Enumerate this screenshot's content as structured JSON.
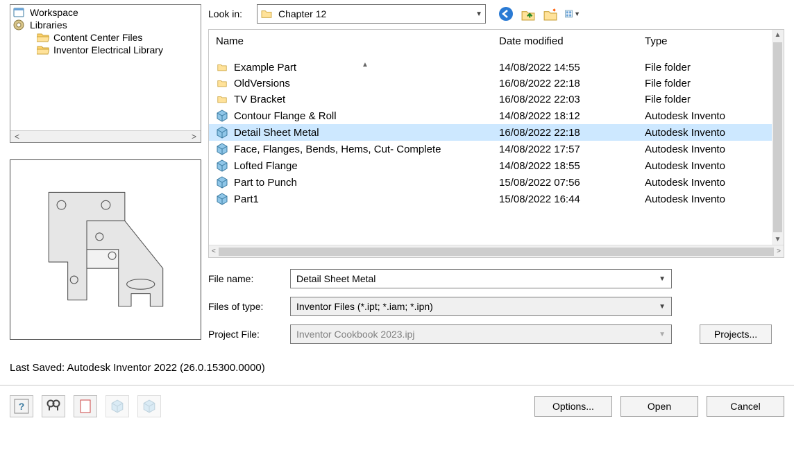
{
  "tree": {
    "items": [
      {
        "icon": "workspace",
        "label": "Workspace",
        "indent": 0
      },
      {
        "icon": "library",
        "label": "Libraries",
        "indent": 0
      },
      {
        "icon": "folder",
        "label": "Content Center Files",
        "indent": 1
      },
      {
        "icon": "folder",
        "label": "Inventor Electrical Library",
        "indent": 1
      }
    ]
  },
  "lookin": {
    "label": "Look in:",
    "value": "Chapter 12"
  },
  "columns": {
    "name": "Name",
    "date": "Date modified",
    "type": "Type"
  },
  "files": [
    {
      "icon": "folder",
      "name": "Example Part",
      "date": "14/08/2022 14:55",
      "type": "File folder"
    },
    {
      "icon": "folder",
      "name": "OldVersions",
      "date": "16/08/2022 22:18",
      "type": "File folder"
    },
    {
      "icon": "folder",
      "name": "TV Bracket",
      "date": "16/08/2022 22:03",
      "type": "File folder"
    },
    {
      "icon": "part",
      "name": "Contour Flange & Roll",
      "date": "14/08/2022 18:12",
      "type": "Autodesk Invento"
    },
    {
      "icon": "part",
      "name": "Detail Sheet Metal",
      "date": "16/08/2022 22:18",
      "type": "Autodesk Invento",
      "selected": true
    },
    {
      "icon": "part",
      "name": "Face, Flanges, Bends, Hems, Cut- Complete",
      "date": "14/08/2022 17:57",
      "type": "Autodesk Invento"
    },
    {
      "icon": "part",
      "name": "Lofted Flange",
      "date": "14/08/2022 18:55",
      "type": "Autodesk Invento"
    },
    {
      "icon": "part",
      "name": "Part to Punch",
      "date": "15/08/2022 07:56",
      "type": "Autodesk Invento"
    },
    {
      "icon": "part",
      "name": "Part1",
      "date": "15/08/2022 16:44",
      "type": "Autodesk Invento"
    }
  ],
  "fields": {
    "filename_label": "File name:",
    "filename_value": "Detail Sheet Metal",
    "filetype_label": "Files of type:",
    "filetype_value": "Inventor Files (*.ipt; *.iam; *.ipn)",
    "project_label": "Project File:",
    "project_value": "Inventor Cookbook 2023.ipj",
    "projects_btn": "Projects..."
  },
  "last_saved": "Last Saved: Autodesk Inventor 2022 (26.0.15300.0000)",
  "footer": {
    "options": "Options...",
    "open": "Open",
    "cancel": "Cancel"
  },
  "colors": {
    "selection": "#cde8ff",
    "folder_fill": "#ffe29a",
    "folder_stroke": "#caa23a",
    "part_fill": "#8fc6e8",
    "part_stroke": "#3a7aa0"
  }
}
